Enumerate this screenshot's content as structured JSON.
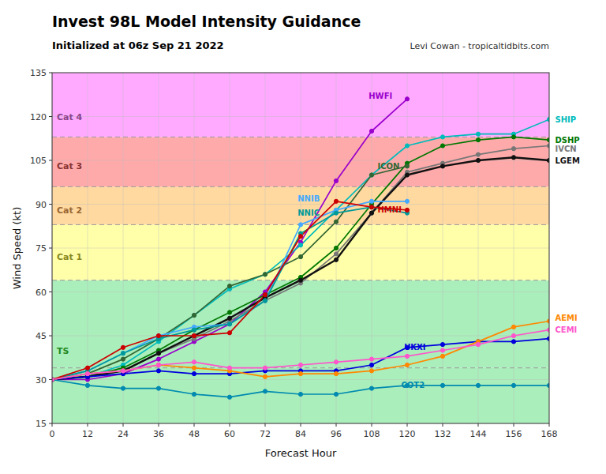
{
  "chart_data": {
    "type": "line",
    "title": "Invest 98L Model Intensity Guidance",
    "subtitle": "Initialized at 06z Sep 21 2022",
    "credit": "Levi Cowan - tropicaltidbits.com",
    "xlabel": "Forecast Hour",
    "ylabel": "Wind Speed (kt)",
    "xlim": [
      0,
      168
    ],
    "ylim": [
      15,
      135
    ],
    "xticks": [
      0,
      12,
      24,
      36,
      48,
      60,
      72,
      84,
      96,
      108,
      120,
      132,
      144,
      156,
      168
    ],
    "yticks": [
      15,
      30,
      45,
      60,
      75,
      90,
      105,
      120,
      135
    ],
    "grid": true,
    "marker": "circle",
    "bands": [
      {
        "ymin": 15,
        "ymax": 34,
        "color": "#aaeebb"
      },
      {
        "ymin": 34,
        "ymax": 64,
        "color": "#aaeebb"
      },
      {
        "ymin": 64,
        "ymax": 83,
        "color": "#ffffaa"
      },
      {
        "ymin": 83,
        "ymax": 96,
        "color": "#ffd9a0"
      },
      {
        "ymin": 96,
        "ymax": 113,
        "color": "#ffaaaa"
      },
      {
        "ymin": 113,
        "ymax": 140,
        "color": "#ffaaff"
      }
    ],
    "thresholds": [
      34,
      64,
      83,
      96,
      113
    ],
    "threshold_line_style": "dashed",
    "category_labels": [
      {
        "text": "TS",
        "y": 40,
        "color": "#228822"
      },
      {
        "text": "Cat 1",
        "y": 72,
        "color": "#888822"
      },
      {
        "text": "Cat 2",
        "y": 88,
        "color": "#996633"
      },
      {
        "text": "Cat 3",
        "y": 103,
        "color": "#883333"
      },
      {
        "text": "Cat 4",
        "y": 120,
        "color": "#884488"
      }
    ],
    "series": [
      {
        "name": "HWFI",
        "color": "#9900cc",
        "x": [
          0,
          12,
          24,
          36,
          48,
          60,
          72,
          84,
          96,
          108,
          120
        ],
        "values": [
          30,
          30,
          32,
          37,
          43,
          49,
          60,
          77,
          98,
          115,
          126
        ]
      },
      {
        "name": "SHIP",
        "color": "#00bbbb",
        "x": [
          0,
          12,
          24,
          36,
          48,
          60,
          72,
          84,
          96,
          108,
          120,
          132,
          144,
          156,
          168
        ],
        "values": [
          30,
          31,
          35,
          43,
          52,
          61,
          66,
          76,
          88,
          100,
          110,
          113,
          114,
          114,
          119
        ]
      },
      {
        "name": "DSHP",
        "color": "#007700",
        "x": [
          0,
          12,
          24,
          36,
          48,
          60,
          72,
          84,
          96,
          108,
          120,
          132,
          144,
          156,
          168
        ],
        "values": [
          30,
          31,
          34,
          40,
          47,
          53,
          59,
          65,
          75,
          90,
          104,
          110,
          112,
          113,
          112
        ]
      },
      {
        "name": "IVCN",
        "color": "#777777",
        "x": [
          0,
          12,
          24,
          36,
          48,
          60,
          72,
          84,
          96,
          108,
          120,
          132,
          144,
          156,
          168
        ],
        "values": [
          30,
          31,
          33,
          39,
          44,
          50,
          57,
          63,
          73,
          87,
          101,
          104,
          107,
          109,
          110
        ]
      },
      {
        "name": "LGEM",
        "color": "#111111",
        "x": [
          0,
          12,
          24,
          36,
          48,
          60,
          72,
          84,
          96,
          108,
          120,
          132,
          144,
          156,
          168
        ],
        "values": [
          30,
          31,
          33,
          39,
          45,
          51,
          58,
          64,
          71,
          87,
          100,
          103,
          105,
          106,
          105
        ]
      },
      {
        "name": "ICON",
        "color": "#336633",
        "x": [
          0,
          12,
          24,
          36,
          48,
          60,
          72,
          84,
          96,
          108,
          120
        ],
        "values": [
          30,
          32,
          37,
          44,
          52,
          62,
          66,
          72,
          84,
          100,
          103
        ]
      },
      {
        "name": "NNIB",
        "color": "#44aaff",
        "x": [
          0,
          12,
          24,
          36,
          48,
          60,
          72,
          84,
          96,
          108,
          120
        ],
        "values": [
          30,
          33,
          39,
          45,
          48,
          49,
          57,
          83,
          88,
          91,
          91
        ]
      },
      {
        "name": "NNIC",
        "color": "#009999",
        "x": [
          0,
          12,
          24,
          36,
          48,
          60,
          72,
          84,
          96,
          108,
          120
        ],
        "values": [
          30,
          33,
          39,
          44,
          47,
          49,
          57,
          80,
          87,
          89,
          87
        ]
      },
      {
        "name": "HMNI",
        "color": "#cc0000",
        "x": [
          0,
          12,
          24,
          36,
          48,
          60,
          72,
          84,
          96,
          108,
          120
        ],
        "values": [
          30,
          34,
          41,
          45,
          45,
          46,
          59,
          79,
          91,
          89,
          88
        ]
      },
      {
        "name": "UKXI",
        "color": "#0000dd",
        "x": [
          0,
          12,
          24,
          36,
          48,
          60,
          72,
          84,
          96,
          108,
          120,
          132,
          144,
          156,
          168
        ],
        "values": [
          30,
          31,
          32,
          33,
          32,
          32,
          33,
          33,
          33,
          35,
          41,
          42,
          43,
          43,
          44
        ]
      },
      {
        "name": "COT2",
        "color": "#008ab0",
        "x": [
          0,
          12,
          24,
          36,
          48,
          60,
          72,
          84,
          96,
          108,
          120,
          132,
          144,
          156,
          168
        ],
        "values": [
          30,
          28,
          27,
          27,
          25,
          24,
          26,
          25,
          25,
          27,
          28,
          28,
          28,
          28,
          28
        ]
      },
      {
        "name": "AEMI",
        "color": "#ff8800",
        "x": [
          0,
          12,
          24,
          36,
          48,
          60,
          72,
          84,
          96,
          108,
          120,
          132,
          144,
          156,
          168
        ],
        "values": [
          30,
          32,
          33,
          35,
          34,
          33,
          31,
          32,
          32,
          33,
          35,
          38,
          43,
          48,
          50
        ]
      },
      {
        "name": "CEMI",
        "color": "#ff55cc",
        "x": [
          0,
          12,
          24,
          36,
          48,
          60,
          72,
          84,
          96,
          108,
          120,
          132,
          144,
          156,
          168
        ],
        "values": [
          30,
          32,
          33,
          35,
          36,
          34,
          34,
          35,
          36,
          37,
          38,
          40,
          42,
          45,
          47
        ]
      }
    ],
    "annotations": [
      {
        "text": "HWFI",
        "x": 107,
        "y": 127,
        "color": "#9900cc"
      },
      {
        "text": "SHIP",
        "x": 170,
        "y": 119,
        "color": "#00bbbb"
      },
      {
        "text": "DSHP",
        "x": 170,
        "y": 112,
        "color": "#007700"
      },
      {
        "text": "IVCN",
        "x": 170,
        "y": 109,
        "color": "#777777"
      },
      {
        "text": "LGEM",
        "x": 170,
        "y": 105,
        "color": "#111111"
      },
      {
        "text": "ICON",
        "x": 110,
        "y": 103,
        "color": "#336633"
      },
      {
        "text": "NNIB",
        "x": 83,
        "y": 92,
        "color": "#44aaff"
      },
      {
        "text": "NNIC",
        "x": 83,
        "y": 87,
        "color": "#009999"
      },
      {
        "text": "HMNI",
        "x": 110,
        "y": 88,
        "color": "#cc0000"
      },
      {
        "text": "UKXI",
        "x": 119,
        "y": 41,
        "color": "#0000dd"
      },
      {
        "text": "COT2",
        "x": 118,
        "y": 28,
        "color": "#008ab0"
      },
      {
        "text": "AEMI",
        "x": 170,
        "y": 51,
        "color": "#ff8800"
      },
      {
        "text": "CEMI",
        "x": 170,
        "y": 47,
        "color": "#ff55cc"
      }
    ]
  }
}
